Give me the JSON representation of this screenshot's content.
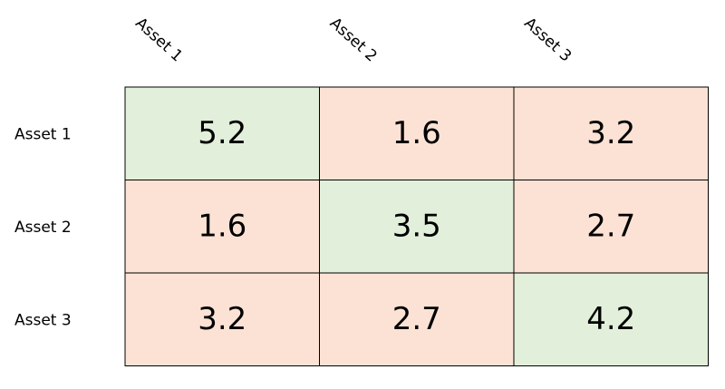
{
  "chart_data": {
    "type": "heatmap",
    "title": "",
    "columns": [
      "Asset 1",
      "Asset 2",
      "Asset 3"
    ],
    "rows": [
      "Asset 1",
      "Asset 2",
      "Asset 3"
    ],
    "values": [
      [
        5.2,
        1.6,
        3.2
      ],
      [
        1.6,
        3.5,
        2.7
      ],
      [
        3.2,
        2.7,
        4.2
      ]
    ],
    "value_labels": [
      [
        "5.2",
        "1.6",
        "3.2"
      ],
      [
        "1.6",
        "3.5",
        "2.7"
      ],
      [
        "3.2",
        "2.7",
        "4.2"
      ]
    ],
    "colors": {
      "diagonal": "#e2efda",
      "off_diagonal": "#fbe2d5",
      "border": "#000000",
      "text": "#000000"
    }
  }
}
